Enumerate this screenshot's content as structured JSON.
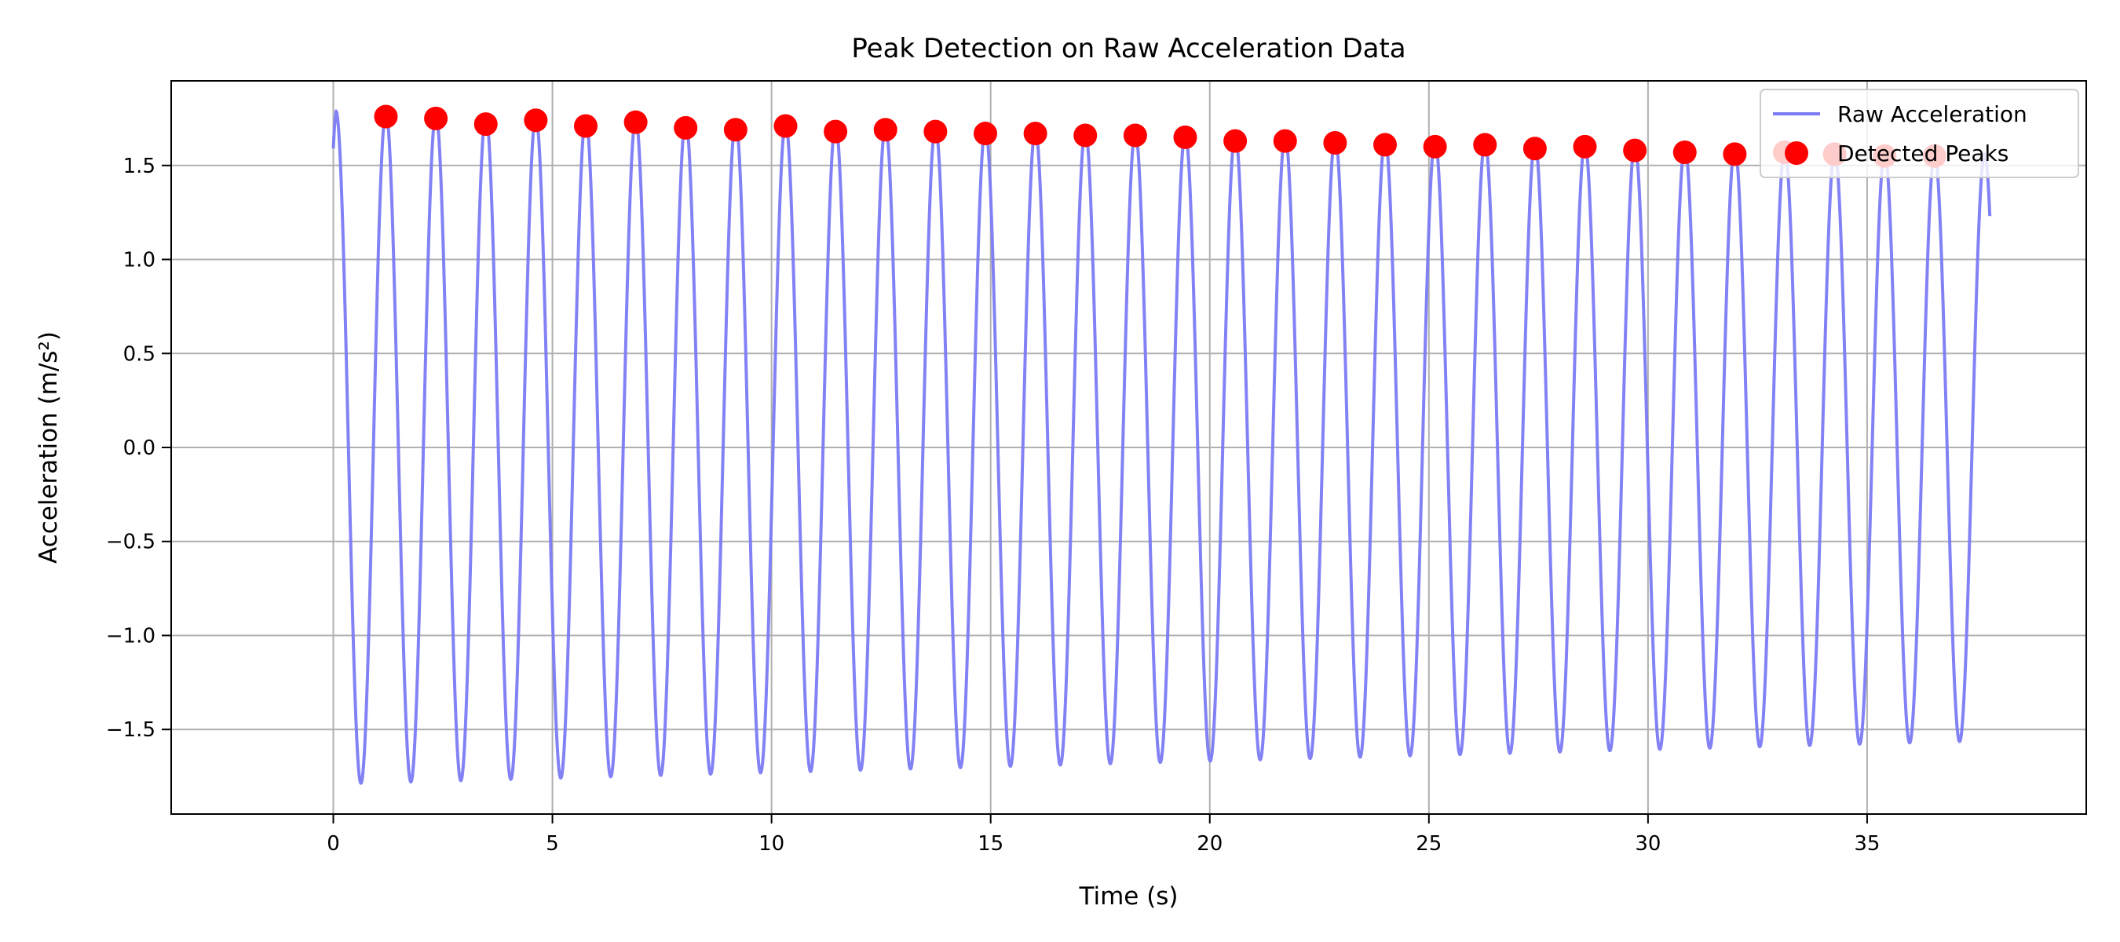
{
  "chart_data": {
    "type": "line",
    "title": "Peak Detection on Raw Acceleration Data",
    "xlabel": "Time (s)",
    "ylabel": "Acceleration (m/s²)",
    "xlim": [
      -3.7,
      40
    ],
    "ylim": [
      -1.95,
      1.95
    ],
    "xticks": [
      0,
      5,
      10,
      15,
      20,
      25,
      30,
      35
    ],
    "xtick_labels": [
      "0",
      "5",
      "10",
      "15",
      "20",
      "25",
      "30",
      "35"
    ],
    "yticks": [
      -1.5,
      -1.0,
      -0.5,
      0.0,
      0.5,
      1.0,
      1.5
    ],
    "ytick_labels": [
      "−1.5",
      "−1.0",
      "−0.5",
      "0.0",
      "0.5",
      "1.0",
      "1.5"
    ],
    "grid": true,
    "legend_position": "top-right",
    "series": [
      {
        "name": "Raw Acceleration",
        "kind": "line",
        "color": "#7b7bf4",
        "waveform": {
          "t_start": 0.0,
          "t_end": 37.8,
          "start_value": 1.59,
          "end_value": 1.4,
          "period": 1.14,
          "first_max_time": 0.06,
          "first_max_value": 1.77,
          "amplitude_start": 1.79,
          "amplitude_end": 1.56
        }
      },
      {
        "name": "Detected Peaks",
        "kind": "scatter",
        "color": "#ff0000",
        "x": [
          1.2,
          2.34,
          3.48,
          4.62,
          5.76,
          6.9,
          8.04,
          9.18,
          10.32,
          11.46,
          12.6,
          13.74,
          14.88,
          16.02,
          17.16,
          18.3,
          19.44,
          20.58,
          21.72,
          22.86,
          24.0,
          25.14,
          26.28,
          27.42,
          28.56,
          29.7,
          30.84,
          31.98,
          33.12,
          34.26,
          35.4,
          36.54
        ],
        "y": [
          1.76,
          1.75,
          1.72,
          1.74,
          1.71,
          1.73,
          1.7,
          1.69,
          1.71,
          1.68,
          1.69,
          1.68,
          1.67,
          1.67,
          1.66,
          1.66,
          1.65,
          1.63,
          1.63,
          1.62,
          1.61,
          1.6,
          1.61,
          1.59,
          1.6,
          1.58,
          1.57,
          1.56,
          1.57,
          1.56,
          1.55,
          1.55
        ]
      }
    ]
  }
}
